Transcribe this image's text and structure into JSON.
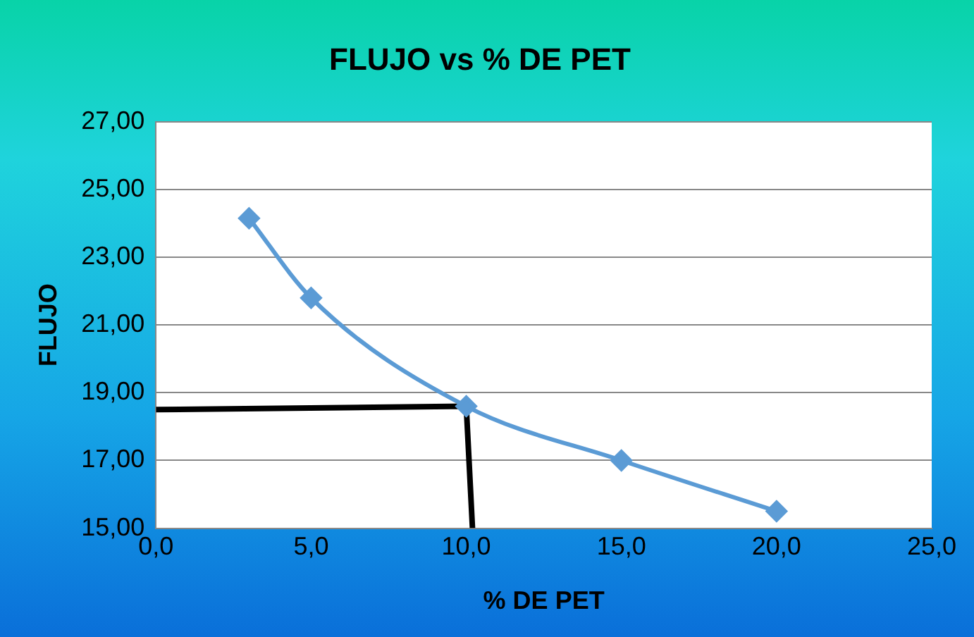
{
  "chart_data": {
    "type": "line",
    "title": "FLUJO vs % DE PET",
    "xlabel": "% DE PET",
    "ylabel": "FLUJO",
    "series": [
      {
        "type": "line",
        "color": "#5b9bd5",
        "marker": "diamond",
        "x": [
          3,
          5,
          10,
          15,
          20
        ],
        "values": [
          24.15,
          21.8,
          18.6,
          17.0,
          15.5
        ]
      },
      {
        "type": "line",
        "color": "#000000",
        "marker": "none",
        "x": [
          0,
          10.0,
          10.2
        ],
        "values": [
          18.5,
          18.6,
          15.0
        ]
      }
    ],
    "xlim": [
      0,
      25
    ],
    "xticks": [
      {
        "value": 0,
        "label": "0,0"
      },
      {
        "value": 5,
        "label": "5,0"
      },
      {
        "value": 10,
        "label": "10,0"
      },
      {
        "value": 15,
        "label": "15,0"
      },
      {
        "value": 20,
        "label": "20,0"
      },
      {
        "value": 25,
        "label": "25,0"
      }
    ],
    "ylim": [
      15,
      27
    ],
    "yticks": [
      {
        "value": 15,
        "label": "15,00"
      },
      {
        "value": 17,
        "label": "17,00"
      },
      {
        "value": 19,
        "label": "19,00"
      },
      {
        "value": 21,
        "label": "21,00"
      },
      {
        "value": 23,
        "label": "23,00"
      },
      {
        "value": 25,
        "label": "25,00"
      },
      {
        "value": 27,
        "label": "27,00"
      }
    ],
    "grid": "y",
    "legend": false
  }
}
